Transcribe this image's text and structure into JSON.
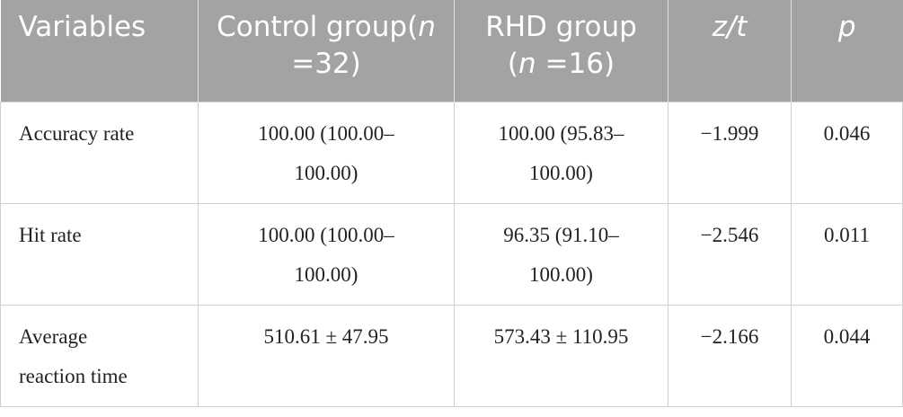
{
  "table": {
    "header": [
      [
        {
          "text": "Variables"
        }
      ],
      [
        {
          "text": "Control group("
        },
        {
          "text": "n",
          "italic": true
        },
        {
          "text": " =32)"
        }
      ],
      [
        {
          "text": "RHD group ("
        },
        {
          "text": "n",
          "italic": true
        },
        {
          "text": " =16)"
        }
      ],
      [
        {
          "text": "z/t",
          "italic": true
        }
      ],
      [
        {
          "text": "p",
          "italic": true
        }
      ]
    ],
    "rows": [
      [
        [
          "Accuracy rate"
        ],
        [
          "100.00 (100.00–",
          "100.00)"
        ],
        [
          "100.00 (95.83–",
          "100.00)"
        ],
        [
          "−1.999"
        ],
        [
          "0.046"
        ]
      ],
      [
        [
          "Hit rate"
        ],
        [
          "100.00 (100.00–",
          "100.00)"
        ],
        [
          "96.35 (91.10–",
          "100.00)"
        ],
        [
          "−2.546"
        ],
        [
          "0.011"
        ]
      ],
      [
        [
          "Average",
          "reaction time"
        ],
        [
          "510.61 ± 47.95"
        ],
        [
          "573.43 ± 110.95"
        ],
        [
          "−2.166"
        ],
        [
          "0.044"
        ]
      ]
    ]
  }
}
